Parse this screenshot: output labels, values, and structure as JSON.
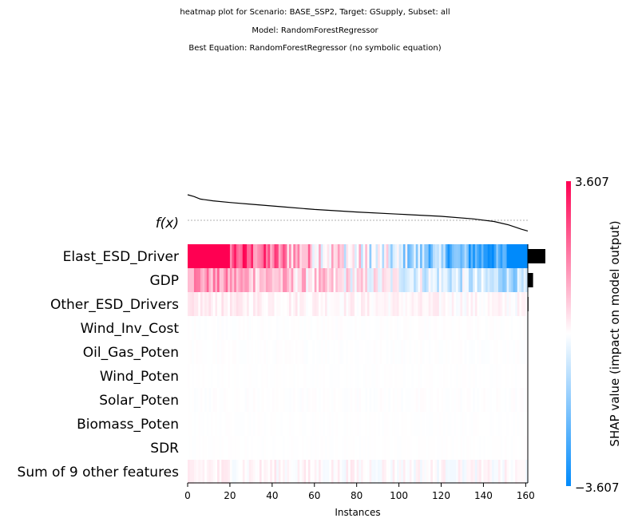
{
  "titles": {
    "line1": "heatmap plot for Scenario: BASE_SSP2, Target: GSupply, Subset: all",
    "line2": "Model: RandomForestRegressor",
    "line3": "Best Equation: RandomForestRegressor (no symbolic equation)"
  },
  "chart_data": {
    "type": "heatmap",
    "fx_label": "f(x)",
    "xlabel": "Instances",
    "x_ticks": [
      0,
      20,
      40,
      60,
      80,
      100,
      120,
      140,
      160
    ],
    "xlim": [
      0,
      161
    ],
    "n_instances": 161,
    "features": [
      {
        "name": "Elast_ESD_Driver",
        "importance": 1.0
      },
      {
        "name": "GDP",
        "importance": 0.3
      },
      {
        "name": "Other_ESD_Drivers",
        "importance": 0.04
      },
      {
        "name": "Wind_Inv_Cost",
        "importance": 0.01
      },
      {
        "name": "Oil_Gas_Poten",
        "importance": 0.01
      },
      {
        "name": "Wind_Poten",
        "importance": 0.005
      },
      {
        "name": "Solar_Poten",
        "importance": 0.005
      },
      {
        "name": "Biomass_Poten",
        "importance": 0.004
      },
      {
        "name": "SDR",
        "importance": 0.003
      },
      {
        "name": "Sum of 9 other features",
        "importance": 0.02
      }
    ],
    "row_profiles": [
      {
        "start": 3.6,
        "end": -3.6,
        "noise": 1.4
      },
      {
        "start": 1.6,
        "end": -1.2,
        "noise": 0.9
      },
      {
        "start": 0.25,
        "end": 0.05,
        "noise": 0.25
      },
      {
        "start": 0.0,
        "end": 0.0,
        "noise": 0.05
      },
      {
        "start": 0.0,
        "end": 0.0,
        "noise": 0.05
      },
      {
        "start": 0.0,
        "end": 0.0,
        "noise": 0.03
      },
      {
        "start": 0.0,
        "end": 0.0,
        "noise": 0.06
      },
      {
        "start": 0.0,
        "end": 0.0,
        "noise": 0.03
      },
      {
        "start": 0.0,
        "end": 0.0,
        "noise": 0.03
      },
      {
        "start": 0.15,
        "end": 0.0,
        "noise": 0.3
      }
    ],
    "fx_profile": [
      [
        0,
        1.0
      ],
      [
        3,
        0.96
      ],
      [
        6,
        0.9
      ],
      [
        12,
        0.86
      ],
      [
        20,
        0.82
      ],
      [
        30,
        0.78
      ],
      [
        45,
        0.72
      ],
      [
        60,
        0.66
      ],
      [
        80,
        0.6
      ],
      [
        100,
        0.55
      ],
      [
        120,
        0.5
      ],
      [
        135,
        0.44
      ],
      [
        145,
        0.38
      ],
      [
        152,
        0.3
      ],
      [
        158,
        0.2
      ],
      [
        161,
        0.16
      ]
    ],
    "colorbar": {
      "label": "SHAP value (impact on model output)",
      "max_label": "3.607",
      "min_label": "−3.607",
      "vmin": -3.607,
      "vmax": 3.607,
      "low_color": "#008afb",
      "mid_color": "#ffffff",
      "high_color": "#ff0052"
    }
  }
}
